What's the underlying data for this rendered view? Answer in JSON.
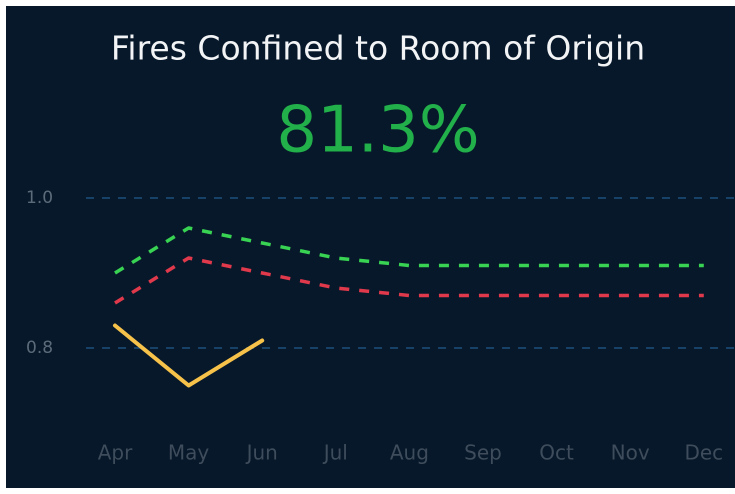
{
  "title": "Fires Confined to Room of Origin",
  "kpi": "81.3%",
  "chart_data": {
    "type": "line",
    "categories": [
      "Apr",
      "May",
      "Jun",
      "Jul",
      "Aug",
      "Sep",
      "Oct",
      "Nov",
      "Dec"
    ],
    "series": [
      {
        "color": "#39d353",
        "dashed": true,
        "values": [
          0.9,
          0.96,
          0.94,
          0.92,
          0.91,
          0.91,
          0.91,
          0.91,
          0.91
        ]
      },
      {
        "color": "#e0394b",
        "dashed": true,
        "values": [
          0.86,
          0.92,
          0.9,
          0.88,
          0.87,
          0.87,
          0.87,
          0.87,
          0.87
        ]
      },
      {
        "color": "#f7c24a",
        "dashed": false,
        "values": [
          0.83,
          0.75,
          0.81,
          null,
          null,
          null,
          null,
          null,
          null
        ]
      }
    ],
    "ylim": [
      0.7,
      1.03
    ],
    "yticks": [
      {
        "value": 1,
        "label": "1.0"
      },
      {
        "value": 0.8,
        "label": "0.8"
      }
    ],
    "grid": true
  }
}
